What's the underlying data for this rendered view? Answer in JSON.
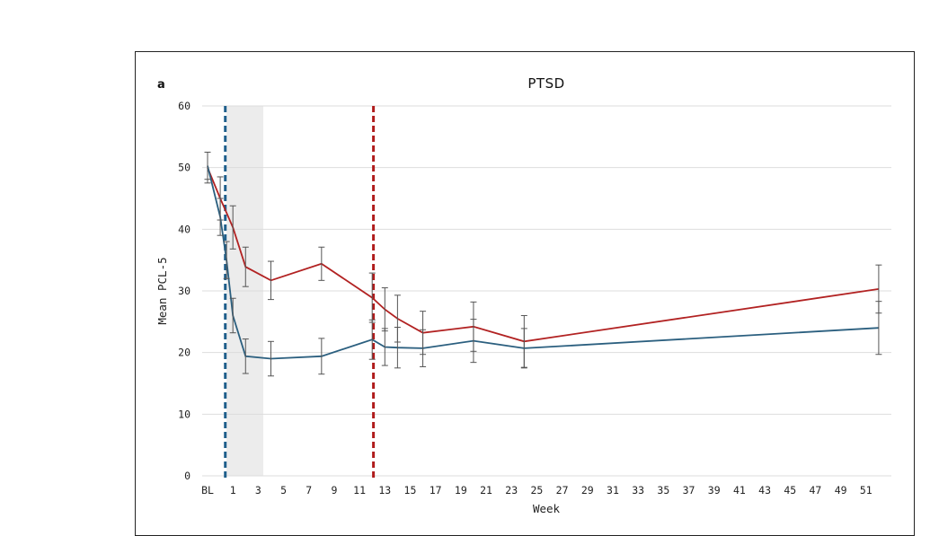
{
  "chart_data": {
    "type": "line",
    "panel_label": "a",
    "title": "PTSD",
    "xlabel": "Week",
    "ylabel": "Mean PCL-5",
    "ylim": [
      0,
      60
    ],
    "yticks": [
      0,
      10,
      20,
      30,
      40,
      50,
      60
    ],
    "xlim": [
      -1,
      53
    ],
    "xticks": [
      {
        "x": -1,
        "label": "BL"
      },
      {
        "x": 1,
        "label": "1"
      },
      {
        "x": 3,
        "label": "3"
      },
      {
        "x": 5,
        "label": "5"
      },
      {
        "x": 7,
        "label": "7"
      },
      {
        "x": 9,
        "label": "9"
      },
      {
        "x": 11,
        "label": "11"
      },
      {
        "x": 13,
        "label": "13"
      },
      {
        "x": 15,
        "label": "15"
      },
      {
        "x": 17,
        "label": "17"
      },
      {
        "x": 19,
        "label": "19"
      },
      {
        "x": 21,
        "label": "21"
      },
      {
        "x": 23,
        "label": "23"
      },
      {
        "x": 25,
        "label": "25"
      },
      {
        "x": 27,
        "label": "27"
      },
      {
        "x": 29,
        "label": "29"
      },
      {
        "x": 31,
        "label": "31"
      },
      {
        "x": 33,
        "label": "33"
      },
      {
        "x": 35,
        "label": "35"
      },
      {
        "x": 37,
        "label": "37"
      },
      {
        "x": 39,
        "label": "39"
      },
      {
        "x": 41,
        "label": "41"
      },
      {
        "x": 43,
        "label": "43"
      },
      {
        "x": 45,
        "label": "45"
      },
      {
        "x": 47,
        "label": "47"
      },
      {
        "x": 49,
        "label": "49"
      },
      {
        "x": 51,
        "label": "51"
      }
    ],
    "grid": true,
    "shaded_region": {
      "x_start": 0.5,
      "x_end": 3.4,
      "color": "#ececec"
    },
    "vertical_lines": [
      {
        "x": 0.4,
        "color": "#1f5f8b",
        "style": "dashed"
      },
      {
        "x": 12.1,
        "color": "#b01c1c",
        "style": "dashed"
      }
    ],
    "series": [
      {
        "color": "#b22222",
        "points": [
          {
            "x": -1,
            "y": 50.0,
            "err": 2.5
          },
          {
            "x": 0,
            "y": 45.0,
            "err": 3.5
          },
          {
            "x": 1,
            "y": 40.3,
            "err": 3.5
          },
          {
            "x": 2,
            "y": 33.9,
            "err": 3.2
          },
          {
            "x": 4,
            "y": 31.7,
            "err": 3.1
          },
          {
            "x": 8,
            "y": 34.4,
            "err": 2.7
          },
          {
            "x": 12,
            "y": 28.9,
            "err": 4.0
          },
          {
            "x": 13,
            "y": 27.0,
            "err": 3.5
          },
          {
            "x": 14,
            "y": 25.5,
            "err": 3.8
          },
          {
            "x": 16,
            "y": 23.2,
            "err": 3.5
          },
          {
            "x": 20,
            "y": 24.2,
            "err": 4.0
          },
          {
            "x": 24,
            "y": 21.8,
            "err": 4.2
          },
          {
            "x": 52,
            "y": 30.3,
            "err": 3.9
          }
        ]
      },
      {
        "color": "#2b5f7f",
        "points": [
          {
            "x": -1,
            "y": 50.3,
            "err": 2.2
          },
          {
            "x": 0,
            "y": 42.0,
            "err": 3.0
          },
          {
            "x": 0.5,
            "y": 35.0,
            "err": 3.0
          },
          {
            "x": 1,
            "y": 26.0,
            "err": 2.8
          },
          {
            "x": 2,
            "y": 19.4,
            "err": 2.8
          },
          {
            "x": 4,
            "y": 19.0,
            "err": 2.8
          },
          {
            "x": 8,
            "y": 19.4,
            "err": 2.9
          },
          {
            "x": 12,
            "y": 22.1,
            "err": 3.2
          },
          {
            "x": 13,
            "y": 20.9,
            "err": 3.0
          },
          {
            "x": 14,
            "y": 20.8,
            "err": 3.3
          },
          {
            "x": 16,
            "y": 20.7,
            "err": 3.0
          },
          {
            "x": 20,
            "y": 21.9,
            "err": 3.5
          },
          {
            "x": 24,
            "y": 20.7,
            "err": 3.2
          },
          {
            "x": 52,
            "y": 24.0,
            "err": 4.3
          }
        ]
      }
    ]
  }
}
